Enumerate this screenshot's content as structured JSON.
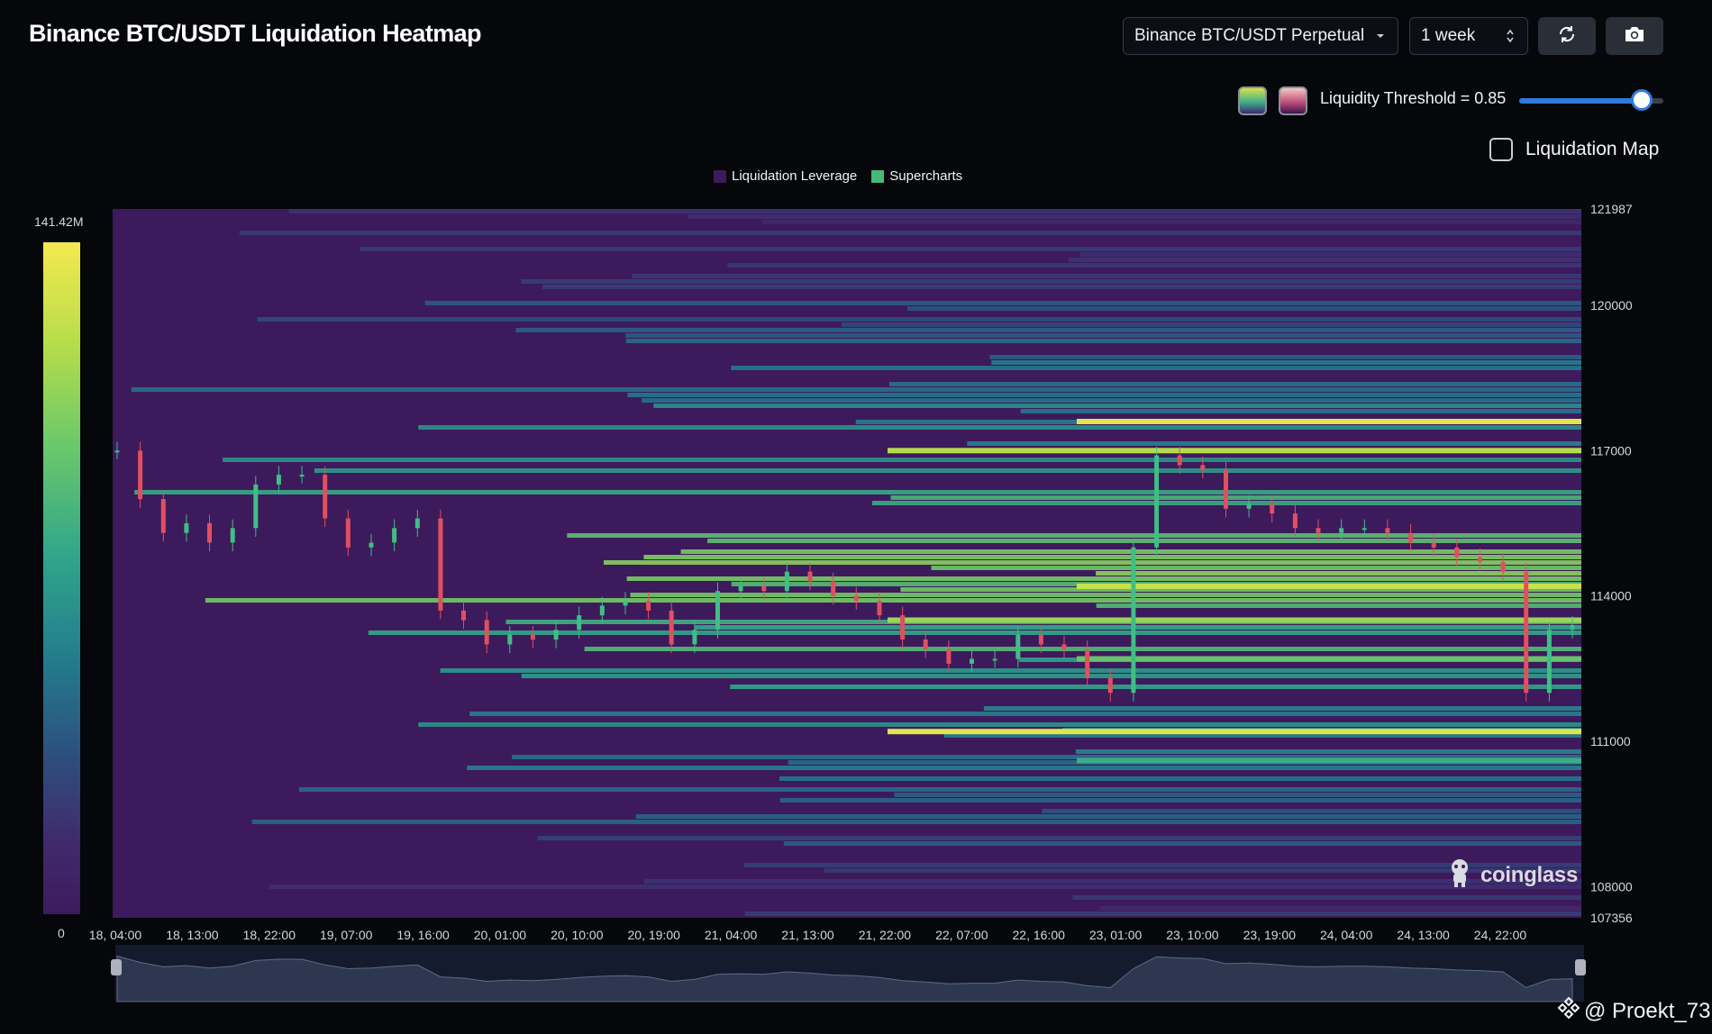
{
  "header": {
    "title": "Binance BTC/USDT Liquidation Heatmap"
  },
  "controls": {
    "pair_select": "Binance BTC/USDT Perpetual",
    "range_select": "1 week",
    "refresh_icon": "refresh-icon",
    "camera_icon": "camera-icon",
    "threshold_label": "Liquidity Threshold = 0.85",
    "threshold_value": 0.85,
    "liquidation_map_label": "Liquidation Map",
    "liquidation_map_checked": false
  },
  "legend": {
    "items": [
      {
        "label": "Liquidation Leverage",
        "color": "#3d1a5c"
      },
      {
        "label": "Supercharts",
        "color": "#46b97a"
      }
    ]
  },
  "color_scale": {
    "max_label": "141.42M",
    "min_label": "0"
  },
  "logo": {
    "text": "coinglass"
  },
  "watermark": {
    "text": "@ Proekt_73"
  },
  "chart_data": {
    "type": "heatmap",
    "title": "Binance BTC/USDT Liquidation Heatmap",
    "y_ticks": [
      121987,
      120000,
      117000,
      114000,
      111000,
      108000,
      107356
    ],
    "ylim": [
      107356,
      121987
    ],
    "x_ticks": [
      "18, 04:00",
      "18, 13:00",
      "18, 22:00",
      "19, 07:00",
      "19, 16:00",
      "20, 01:00",
      "20, 10:00",
      "20, 19:00",
      "21, 04:00",
      "21, 13:00",
      "21, 22:00",
      "22, 07:00",
      "22, 16:00",
      "23, 01:00",
      "23, 10:00",
      "23, 19:00",
      "24, 04:00",
      "24, 13:00",
      "24, 22:00"
    ],
    "price_series": {
      "name": "BTC/USDT",
      "values": [
        117000,
        116000,
        115300,
        115500,
        115100,
        115400,
        116300,
        116500,
        116500,
        115600,
        115000,
        115100,
        115400,
        115600,
        113700,
        113500,
        113000,
        113200,
        113100,
        113300,
        113600,
        113800,
        113900,
        113700,
        113000,
        113300,
        114100,
        114200,
        114100,
        114500,
        114300,
        114000,
        113900,
        113600,
        113100,
        112900,
        112600,
        112700,
        112700,
        113200,
        113000,
        112900,
        112300,
        112000,
        115000,
        116900,
        116700,
        116600,
        115800,
        115900,
        115700,
        115400,
        115300,
        115400,
        115400,
        115300,
        115100,
        115000,
        114800,
        114700,
        114500,
        112000,
        113300,
        113400
      ]
    },
    "high_liquidity_levels": [
      {
        "price": 117600,
        "intensity": 0.95
      },
      {
        "price": 117000,
        "intensity": 0.85
      },
      {
        "price": 114200,
        "intensity": 0.9
      },
      {
        "price": 113500,
        "intensity": 0.8
      },
      {
        "price": 112700,
        "intensity": 0.7
      },
      {
        "price": 111200,
        "intensity": 0.95
      },
      {
        "price": 110600,
        "intensity": 0.6
      }
    ],
    "colorscale": [
      "#3d1a5c",
      "#402b6e",
      "#2e4d7e",
      "#24798c",
      "#2fa58b",
      "#6cc86a",
      "#b7dd4b",
      "#f4e94f"
    ],
    "legend_position": "top-center",
    "grid": false
  }
}
